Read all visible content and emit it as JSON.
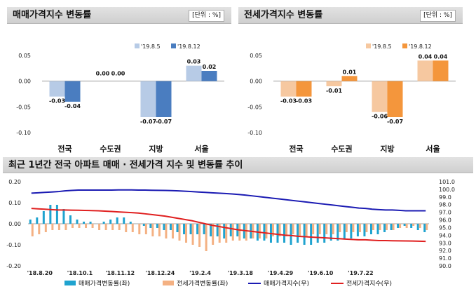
{
  "left_panel": {
    "title": "매매가격지수 변동률",
    "unit": "[단위 : %]"
  },
  "right_panel": {
    "title": "전세가격지수 변동률",
    "unit": "[단위 : %]"
  },
  "bottom_panel": {
    "title": "최근 1년간 전국 아파트 매매 · 전세가격 지수 및 변동률 추이"
  },
  "colors": {
    "sale_prev": "#b7cbe6",
    "sale_curr": "#4a7dc0",
    "jeonse_prev": "#f6c8a0",
    "jeonse_curr": "#f4963c",
    "ts_sale_bar": "#1fa3cf",
    "ts_jeonse_bar": "#f4b183",
    "ts_sale_line": "#1b1bb3",
    "ts_jeonse_line": "#e02020"
  },
  "chart_data": [
    {
      "type": "bar",
      "title": "매매가격지수 변동률",
      "categories": [
        "전국",
        "수도권",
        "지방",
        "서울"
      ],
      "series": [
        {
          "name": "'19.8.5",
          "values": [
            -0.03,
            0.0,
            -0.07,
            0.03
          ],
          "labels": [
            "-0.03",
            "0.00",
            "-0.07",
            "0.03"
          ]
        },
        {
          "name": "'19.8.12",
          "values": [
            -0.04,
            0.0,
            -0.07,
            0.02
          ],
          "labels": [
            "-0.04",
            "0.00",
            "-0.07",
            "0.02"
          ]
        }
      ],
      "ylim": [
        -0.1,
        0.05
      ],
      "yticks": [
        "0.05",
        "0.00",
        "-0.05",
        "-0.10"
      ],
      "ytick_values": [
        0.05,
        0.0,
        -0.05,
        -0.1
      ]
    },
    {
      "type": "bar",
      "title": "전세가격지수 변동률",
      "categories": [
        "전국",
        "수도권",
        "지방",
        "서울"
      ],
      "series": [
        {
          "name": "'19.8.5",
          "values": [
            -0.03,
            -0.01,
            -0.06,
            0.04
          ],
          "labels": [
            "-0.03",
            "-0.01",
            "-0.06",
            "0.04"
          ]
        },
        {
          "name": "'19.8.12",
          "values": [
            -0.03,
            0.01,
            -0.07,
            0.04
          ],
          "labels": [
            "-0.03",
            "0.01",
            "-0.07",
            "0.04"
          ]
        }
      ],
      "ylim": [
        -0.1,
        0.05
      ],
      "yticks": [
        "0.05",
        "0.00",
        "-0.05",
        "-0.10"
      ],
      "ytick_values": [
        0.05,
        0.0,
        -0.05,
        -0.1
      ]
    },
    {
      "type": "bar+line",
      "title": "최근 1년간 전국 아파트 매매 · 전세가격 지수 및 변동률 추이",
      "x_tick_labels": [
        "'18.8.20",
        "'18.10.1",
        "'18.11.12",
        "'18.12.24",
        "'19.2.4",
        "'19.3.18",
        "'19.4.29",
        "'19.6.10",
        "'19.7.22"
      ],
      "y_left_ticks": [
        "0.20",
        "0.10",
        "0.00",
        "-0.10",
        "-0.20"
      ],
      "y_left_values": [
        0.2,
        0.1,
        0.0,
        -0.1,
        -0.2
      ],
      "y_right_ticks": [
        "101.0",
        "100.0",
        "99.0",
        "98.0",
        "97.0",
        "96.0",
        "95.0",
        "94.0",
        "93.0",
        "92.0",
        "91.0",
        "90.0"
      ],
      "y_right_values": [
        101,
        100,
        99,
        98,
        97,
        96,
        95,
        94,
        93,
        92,
        91,
        90
      ],
      "ylim_left": [
        -0.2,
        0.2
      ],
      "ylim_right": [
        90,
        101
      ],
      "legend": [
        "매매가격변동률(좌)",
        "전세가격변동률(좌)",
        "매매가격지수(우)",
        "전세가격지수(우)"
      ],
      "sale_change": [
        0.02,
        0.03,
        0.06,
        0.09,
        0.09,
        0.07,
        0.04,
        0.02,
        0.01,
        0.01,
        0.0,
        0.01,
        0.02,
        0.03,
        0.03,
        0.01,
        0.0,
        -0.01,
        -0.02,
        -0.02,
        -0.03,
        -0.03,
        -0.04,
        -0.05,
        -0.05,
        -0.05,
        -0.05,
        -0.06,
        -0.06,
        -0.07,
        -0.06,
        -0.06,
        -0.07,
        -0.07,
        -0.08,
        -0.08,
        -0.09,
        -0.09,
        -0.09,
        -0.1,
        -0.09,
        -0.1,
        -0.1,
        -0.09,
        -0.09,
        -0.08,
        -0.08,
        -0.07,
        -0.07,
        -0.06,
        -0.06,
        -0.05,
        -0.05,
        -0.04,
        -0.03,
        -0.02,
        -0.01,
        -0.02,
        -0.03,
        -0.04
      ],
      "jeonse_change": [
        -0.06,
        -0.05,
        -0.04,
        -0.03,
        -0.03,
        -0.03,
        -0.02,
        -0.02,
        -0.02,
        -0.02,
        -0.03,
        -0.03,
        -0.03,
        -0.03,
        -0.04,
        -0.04,
        -0.05,
        -0.05,
        -0.06,
        -0.06,
        -0.07,
        -0.07,
        -0.08,
        -0.09,
        -0.1,
        -0.11,
        -0.13,
        -0.1,
        -0.09,
        -0.09,
        -0.08,
        -0.08,
        -0.08,
        -0.07,
        -0.07,
        -0.07,
        -0.06,
        -0.06,
        -0.06,
        -0.05,
        -0.06,
        -0.06,
        -0.05,
        -0.05,
        -0.05,
        -0.05,
        -0.04,
        -0.04,
        -0.04,
        -0.04,
        -0.04,
        -0.03,
        -0.03,
        -0.03,
        -0.03,
        -0.02,
        -0.02,
        -0.01,
        -0.02,
        -0.03
      ],
      "sale_index": [
        99.5,
        99.55,
        99.6,
        99.65,
        99.7,
        99.8,
        99.85,
        99.9,
        99.9,
        99.9,
        99.9,
        99.9,
        99.9,
        99.92,
        99.92,
        99.92,
        99.9,
        99.9,
        99.88,
        99.87,
        99.85,
        99.83,
        99.8,
        99.75,
        99.7,
        99.65,
        99.6,
        99.55,
        99.5,
        99.45,
        99.4,
        99.33,
        99.25,
        99.15,
        99.05,
        98.95,
        98.85,
        98.75,
        98.65,
        98.55,
        98.45,
        98.35,
        98.25,
        98.15,
        98.05,
        97.95,
        97.85,
        97.75,
        97.65,
        97.55,
        97.5,
        97.4,
        97.35,
        97.3,
        97.3,
        97.25,
        97.2,
        97.2,
        97.2,
        97.2
      ],
      "jeonse_index": [
        97.5,
        97.45,
        97.4,
        97.35,
        97.3,
        97.3,
        97.28,
        97.26,
        97.24,
        97.22,
        97.2,
        97.15,
        97.1,
        97.05,
        97.0,
        96.95,
        96.9,
        96.8,
        96.7,
        96.6,
        96.5,
        96.35,
        96.2,
        96.05,
        95.9,
        95.7,
        95.5,
        95.3,
        95.15,
        95.0,
        94.85,
        94.7,
        94.6,
        94.5,
        94.4,
        94.3,
        94.2,
        94.1,
        94.0,
        93.95,
        93.85,
        93.8,
        93.75,
        93.7,
        93.65,
        93.6,
        93.55,
        93.5,
        93.45,
        93.4,
        93.4,
        93.35,
        93.3,
        93.3,
        93.28,
        93.26,
        93.25,
        93.24,
        93.22,
        93.2
      ]
    }
  ]
}
